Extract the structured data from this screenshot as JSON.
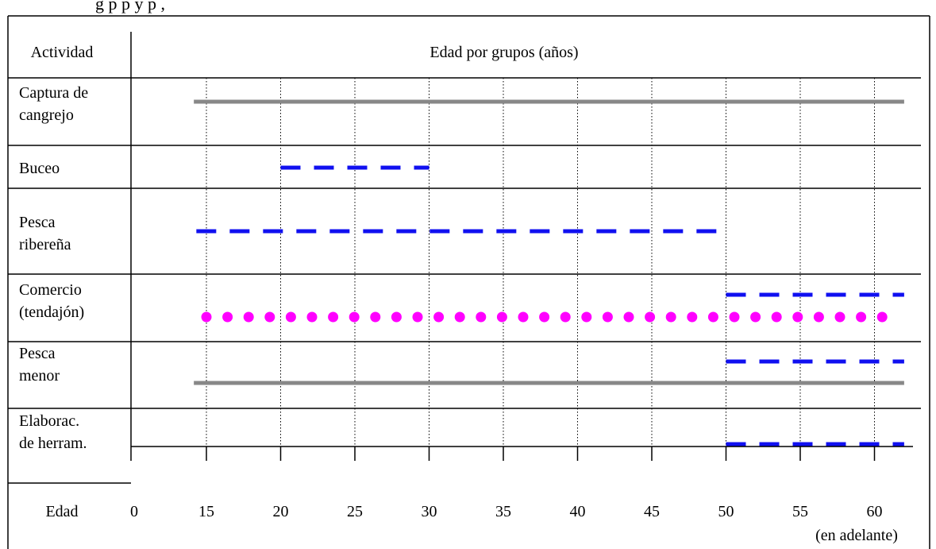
{
  "caption_fragment": "g                  p                       p       y                     p      ,",
  "chart_data": {
    "type": "gantt-timeline",
    "row_header": "Actividad",
    "column_header": "Edad por grupos (años)",
    "axis_label": "Edad",
    "x_ticks": [
      "0",
      "15",
      "20",
      "25",
      "30",
      "35",
      "40",
      "45",
      "50",
      "55",
      "60"
    ],
    "x_tick_note": "(en adelante)",
    "x_range": [
      0,
      62
    ],
    "rows": [
      {
        "label": [
          "Captura de",
          "cangrejo"
        ],
        "bars": [
          {
            "style": "solid-gray",
            "start": 12.5,
            "end": 62
          }
        ]
      },
      {
        "label": [
          "Buceo"
        ],
        "bars": [
          {
            "style": "dashed-blue",
            "start": 20,
            "end": 30
          }
        ]
      },
      {
        "label": [
          "Pesca",
          "ribereña"
        ],
        "bars": [
          {
            "style": "dashed-blue",
            "start": 13,
            "end": 50
          }
        ]
      },
      {
        "label": [
          "Comercio",
          "(tendajón)"
        ],
        "bars": [
          {
            "style": "dashed-blue",
            "start": 50,
            "end": 62
          },
          {
            "style": "dotted-magenta",
            "start": 15,
            "end": 61
          }
        ]
      },
      {
        "label": [
          "Pesca",
          "menor"
        ],
        "bars": [
          {
            "style": "dashed-blue",
            "start": 50,
            "end": 62
          },
          {
            "style": "solid-gray",
            "start": 12.5,
            "end": 62
          }
        ]
      },
      {
        "label": [
          "Elaborac.",
          "de herram."
        ],
        "bars": [
          {
            "style": "dashed-blue",
            "start": 50,
            "end": 62
          }
        ]
      }
    ],
    "colors": {
      "gray": "#888888",
      "blue": "#1010f0",
      "magenta": "#ff00ff"
    }
  }
}
